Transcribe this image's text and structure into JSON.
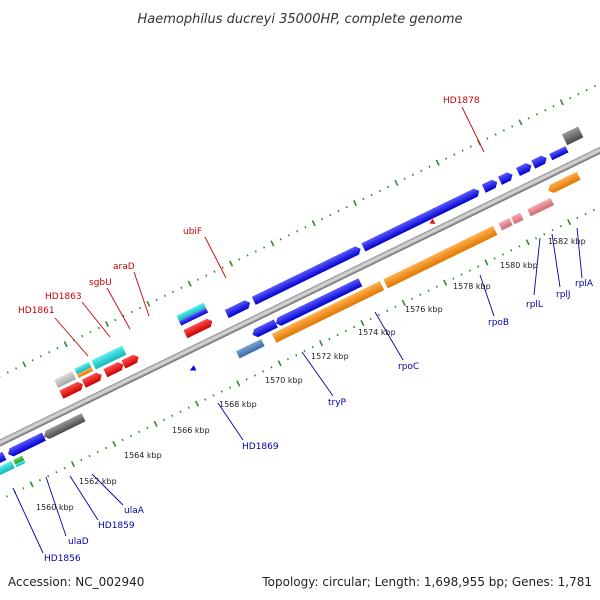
{
  "title": "Haemophilus ducreyi 35000HP, complete genome",
  "footer": {
    "accession": "Accession: NC_002940",
    "topology": "Topology: circular; Length: 1,698,955 bp; Genes: 1,781"
  },
  "colors": {
    "forward_label": "#cc0000",
    "reverse_label": "#0000aa",
    "backbone": "#777777",
    "tick": "#2e8b2e",
    "blue": "#0a0ae6",
    "orange": "#ff8c00",
    "red": "#e81010",
    "cyan": "#19d5d5",
    "gray": "#666666",
    "pink": "#e8888e",
    "lightgray": "#bbbbbb",
    "steel": "#4a7ab0",
    "green": "#33b033"
  },
  "kbp_ticks": [
    "1560 kbp",
    "1562 kbp",
    "1564 kbp",
    "1566 kbp",
    "1568 kbp",
    "1570 kbp",
    "1572 kbp",
    "1574 kbp",
    "1576 kbp",
    "1578 kbp",
    "1580 kbp",
    "1582 kbp"
  ],
  "gene_labels": {
    "forward": [
      "HD1861",
      "HD1863",
      "sgbU",
      "araD",
      "ubiF",
      "HD1878"
    ],
    "reverse": [
      "HD1856",
      "ulaD",
      "HD1859",
      "ulaA",
      "HD1869",
      "tryP",
      "rpoC",
      "rpoB",
      "rplL",
      "rplJ",
      "rplA"
    ]
  }
}
